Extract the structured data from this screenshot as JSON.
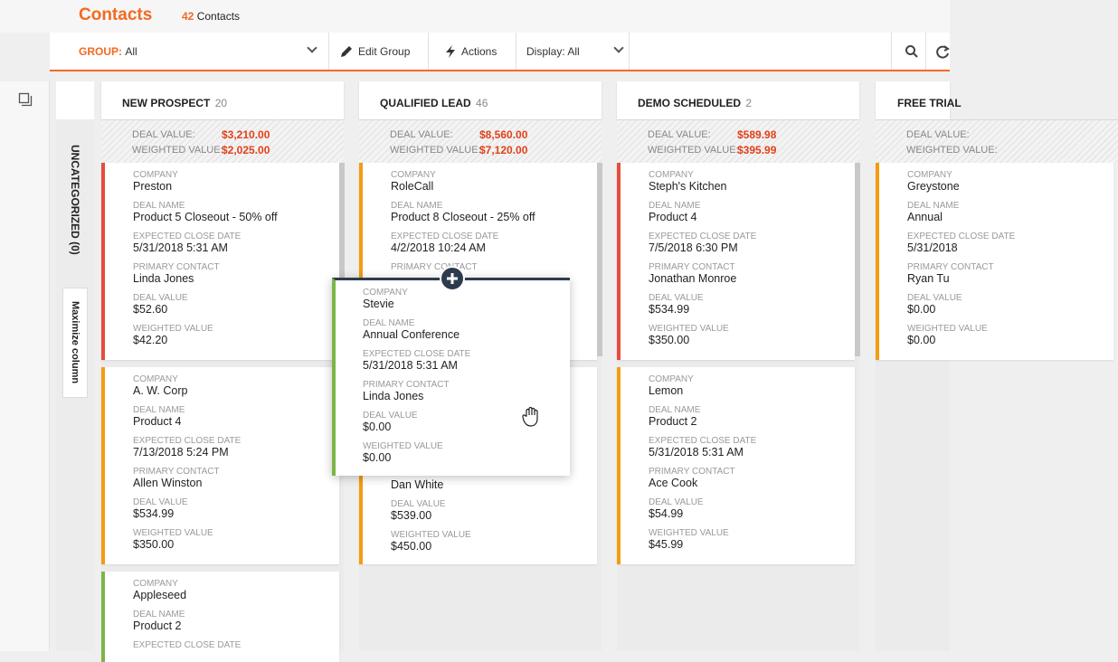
{
  "header": {
    "title": "Contacts",
    "count_num": "42",
    "count_label": "Contacts"
  },
  "toolbar": {
    "group_label": "GROUP:",
    "group_value": "All",
    "edit_group": "Edit Group",
    "actions": "Actions",
    "display": "Display: All"
  },
  "uncategorized": {
    "label": "UNCATEGORIZED (0)",
    "maximize": "Maximize column"
  },
  "columns": [
    {
      "title": "NEW PROSPECT",
      "count": "20",
      "deal_label": "DEAL VALUE:",
      "deal_value": "$3,210.00",
      "weighted_label": "WEIGHTED VALUE:",
      "weighted_value": "$2,025.00"
    },
    {
      "title": "QUALIFIED LEAD",
      "count": "46",
      "deal_label": "DEAL VALUE:",
      "deal_value": "$8,560.00",
      "weighted_label": "WEIGHTED VALUE:",
      "weighted_value": "$7,120.00"
    },
    {
      "title": "DEMO SCHEDULED",
      "count": "2",
      "deal_label": "DEAL VALUE:",
      "deal_value": "$589.98",
      "weighted_label": "WEIGHTED VALUE:",
      "weighted_value": "$395.99"
    },
    {
      "title": "FREE TRIAL",
      "count": "",
      "deal_label": "DEAL VALUE:",
      "deal_value": "",
      "weighted_label": "WEIGHTED VALUE:",
      "weighted_value": ""
    }
  ],
  "labels": {
    "company": "COMPANY",
    "deal_name": "DEAL NAME",
    "close_date": "EXPECTED CLOSE DATE",
    "contact": "PRIMARY CONTACT",
    "deal_value": "DEAL VALUE",
    "weighted": "WEIGHTED VALUE"
  },
  "cards": {
    "c1": {
      "company": "Preston",
      "deal_name": "Product 5 Closeout - 50% off",
      "close_date": "5/31/2018 5:31 AM",
      "contact": "Linda Jones",
      "deal_value": "$52.60",
      "weighted": "$42.20"
    },
    "c2": {
      "company": "A. W. Corp",
      "deal_name": "Product 4",
      "close_date": "7/13/2018 5:24 PM",
      "contact": "Allen Winston",
      "deal_value": "$534.99",
      "weighted": "$350.00"
    },
    "c3": {
      "company": "Appleseed",
      "deal_name": "Product 2"
    },
    "q1": {
      "company": "RoleCall",
      "deal_name": "Product 8 Closeout - 25% off",
      "close_date": "4/2/2018 10:24 AM"
    },
    "q2": {
      "contact": "Dan White",
      "deal_value": "$539.00",
      "weighted": "$450.00"
    },
    "d1": {
      "company": "Steph's Kitchen",
      "deal_name": "Product 4",
      "close_date": "7/5/2018 6:30 PM",
      "contact": "Jonathan Monroe",
      "deal_value": "$534.99",
      "weighted": "$350.00"
    },
    "d2": {
      "company": "Lemon",
      "deal_name": "Product 2",
      "close_date": "5/31/2018 5:31 AM",
      "contact": "Ace Cook",
      "deal_value": "$54.99",
      "weighted": "$45.99"
    },
    "f1": {
      "company": "Greystone",
      "deal_name": "Annual",
      "close_date": "5/31/2018",
      "contact": "Ryan Tu",
      "deal_value": "$0.00",
      "weighted": "$0.00"
    },
    "drag": {
      "company": "Stevie",
      "deal_name": "Annual Conference",
      "close_date": "5/31/2018 5:31 AM",
      "contact": "Linda Jones",
      "deal_value": "$0.00",
      "weighted": "$0.00"
    }
  },
  "colors": {
    "accent": "#f26a21",
    "red": "#e74c3c",
    "orange": "#f39c12",
    "green": "#7ab648",
    "navy": "#2d3b4e"
  }
}
